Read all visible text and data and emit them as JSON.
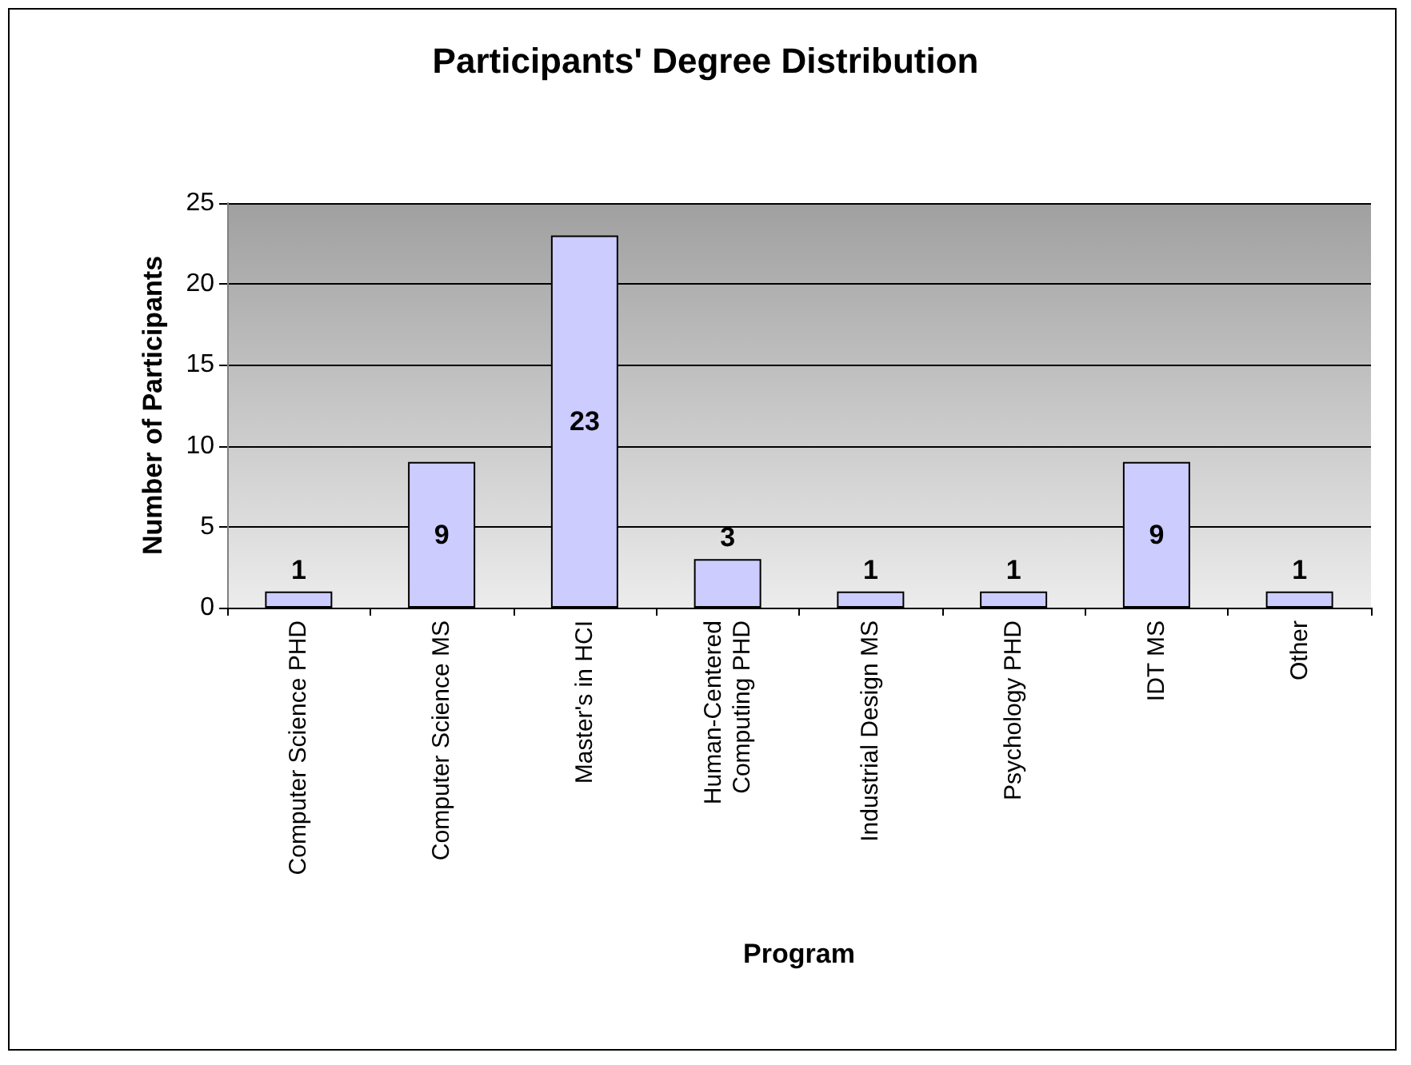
{
  "chart_data": {
    "type": "bar",
    "title": "Participants' Degree Distribution",
    "xlabel": "Program",
    "ylabel": "Number of Participants",
    "categories": [
      "Computer Science PHD",
      "Computer Science MS",
      "Master's in HCI",
      "Human-Centered Computing PHD",
      "Industrial Design MS",
      "Psychology PHD",
      "IDT MS",
      "Other"
    ],
    "values": [
      1,
      9,
      23,
      3,
      1,
      1,
      9,
      1
    ],
    "color": "#ccccff",
    "ylim": [
      0,
      25
    ],
    "yticks": [
      0,
      5,
      10,
      15,
      20,
      25
    ],
    "grid": "y",
    "data_labels": true
  }
}
